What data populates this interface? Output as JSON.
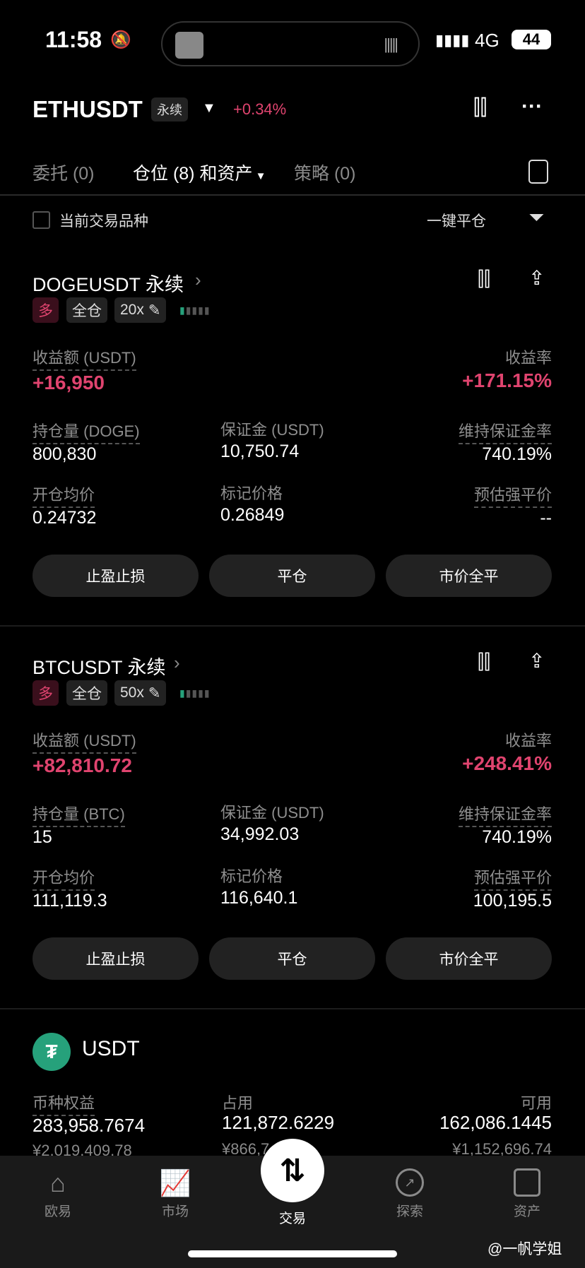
{
  "status_bar": {
    "time": "11:58",
    "network": "4G",
    "battery": "44"
  },
  "header": {
    "symbol": "ETHUSDT",
    "type_badge": "永续",
    "change": "+0.34%"
  },
  "tabs": [
    {
      "label": "委托 (0)"
    },
    {
      "label": "仓位 (8) 和资产"
    },
    {
      "label": "策略 (0)"
    }
  ],
  "filter": {
    "checkbox_label": "当前交易品种",
    "close_all": "一键平仓"
  },
  "positions": [
    {
      "title": "DOGEUSDT 永续",
      "side": "多",
      "margin_mode": "全仓",
      "leverage": "20x",
      "pnl_label": "收益额 (USDT)",
      "pnl": "+16,950",
      "roe_label": "收益率",
      "roe": "+171.15%",
      "size_label": "持仓量 (DOGE)",
      "size": "800,830",
      "margin_label": "保证金 (USDT)",
      "margin": "10,750.74",
      "mmr_label": "维持保证金率",
      "mmr": "740.19%",
      "entry_label": "开仓均价",
      "entry": "0.24732",
      "mark_label": "标记价格",
      "mark": "0.26849",
      "liq_label": "预估强平价",
      "liq": "--"
    },
    {
      "title": "BTCUSDT 永续",
      "side": "多",
      "margin_mode": "全仓",
      "leverage": "50x",
      "pnl_label": "收益额 (USDT)",
      "pnl": "+82,810.72",
      "roe_label": "收益率",
      "roe": "+248.41%",
      "size_label": "持仓量 (BTC)",
      "size": "15",
      "margin_label": "保证金 (USDT)",
      "margin": "34,992.03",
      "mmr_label": "维持保证金率",
      "mmr": "740.19%",
      "entry_label": "开仓均价",
      "entry": "111,119.3",
      "mark_label": "标记价格",
      "mark": "116,640.1",
      "liq_label": "预估强平价",
      "liq": "100,195.5"
    }
  ],
  "buttons": {
    "tpsl": "止盈止损",
    "close": "平仓",
    "market_close": "市价全平"
  },
  "asset": {
    "coin": "USDT",
    "equity_label": "币种权益",
    "equity": "283,958.7674",
    "equity_cny": "¥2,019,409.78",
    "used_label": "占用",
    "used": "121,872.6229",
    "used_cny": "¥866,7",
    "avail_label": "可用",
    "avail": "162,086.1445",
    "avail_cny": "¥1,152,696.74"
  },
  "nav": [
    {
      "label": "欧易",
      "icon": "home-icon"
    },
    {
      "label": "市场",
      "icon": "chart-icon"
    },
    {
      "label": "交易",
      "icon": "trade-icon"
    },
    {
      "label": "探索",
      "icon": "compass-icon"
    },
    {
      "label": "资产",
      "icon": "wallet-icon"
    }
  ],
  "watermark": "@一帆学姐",
  "colors": {
    "up": "#e0446f",
    "accent_teal": "#26a17b"
  }
}
